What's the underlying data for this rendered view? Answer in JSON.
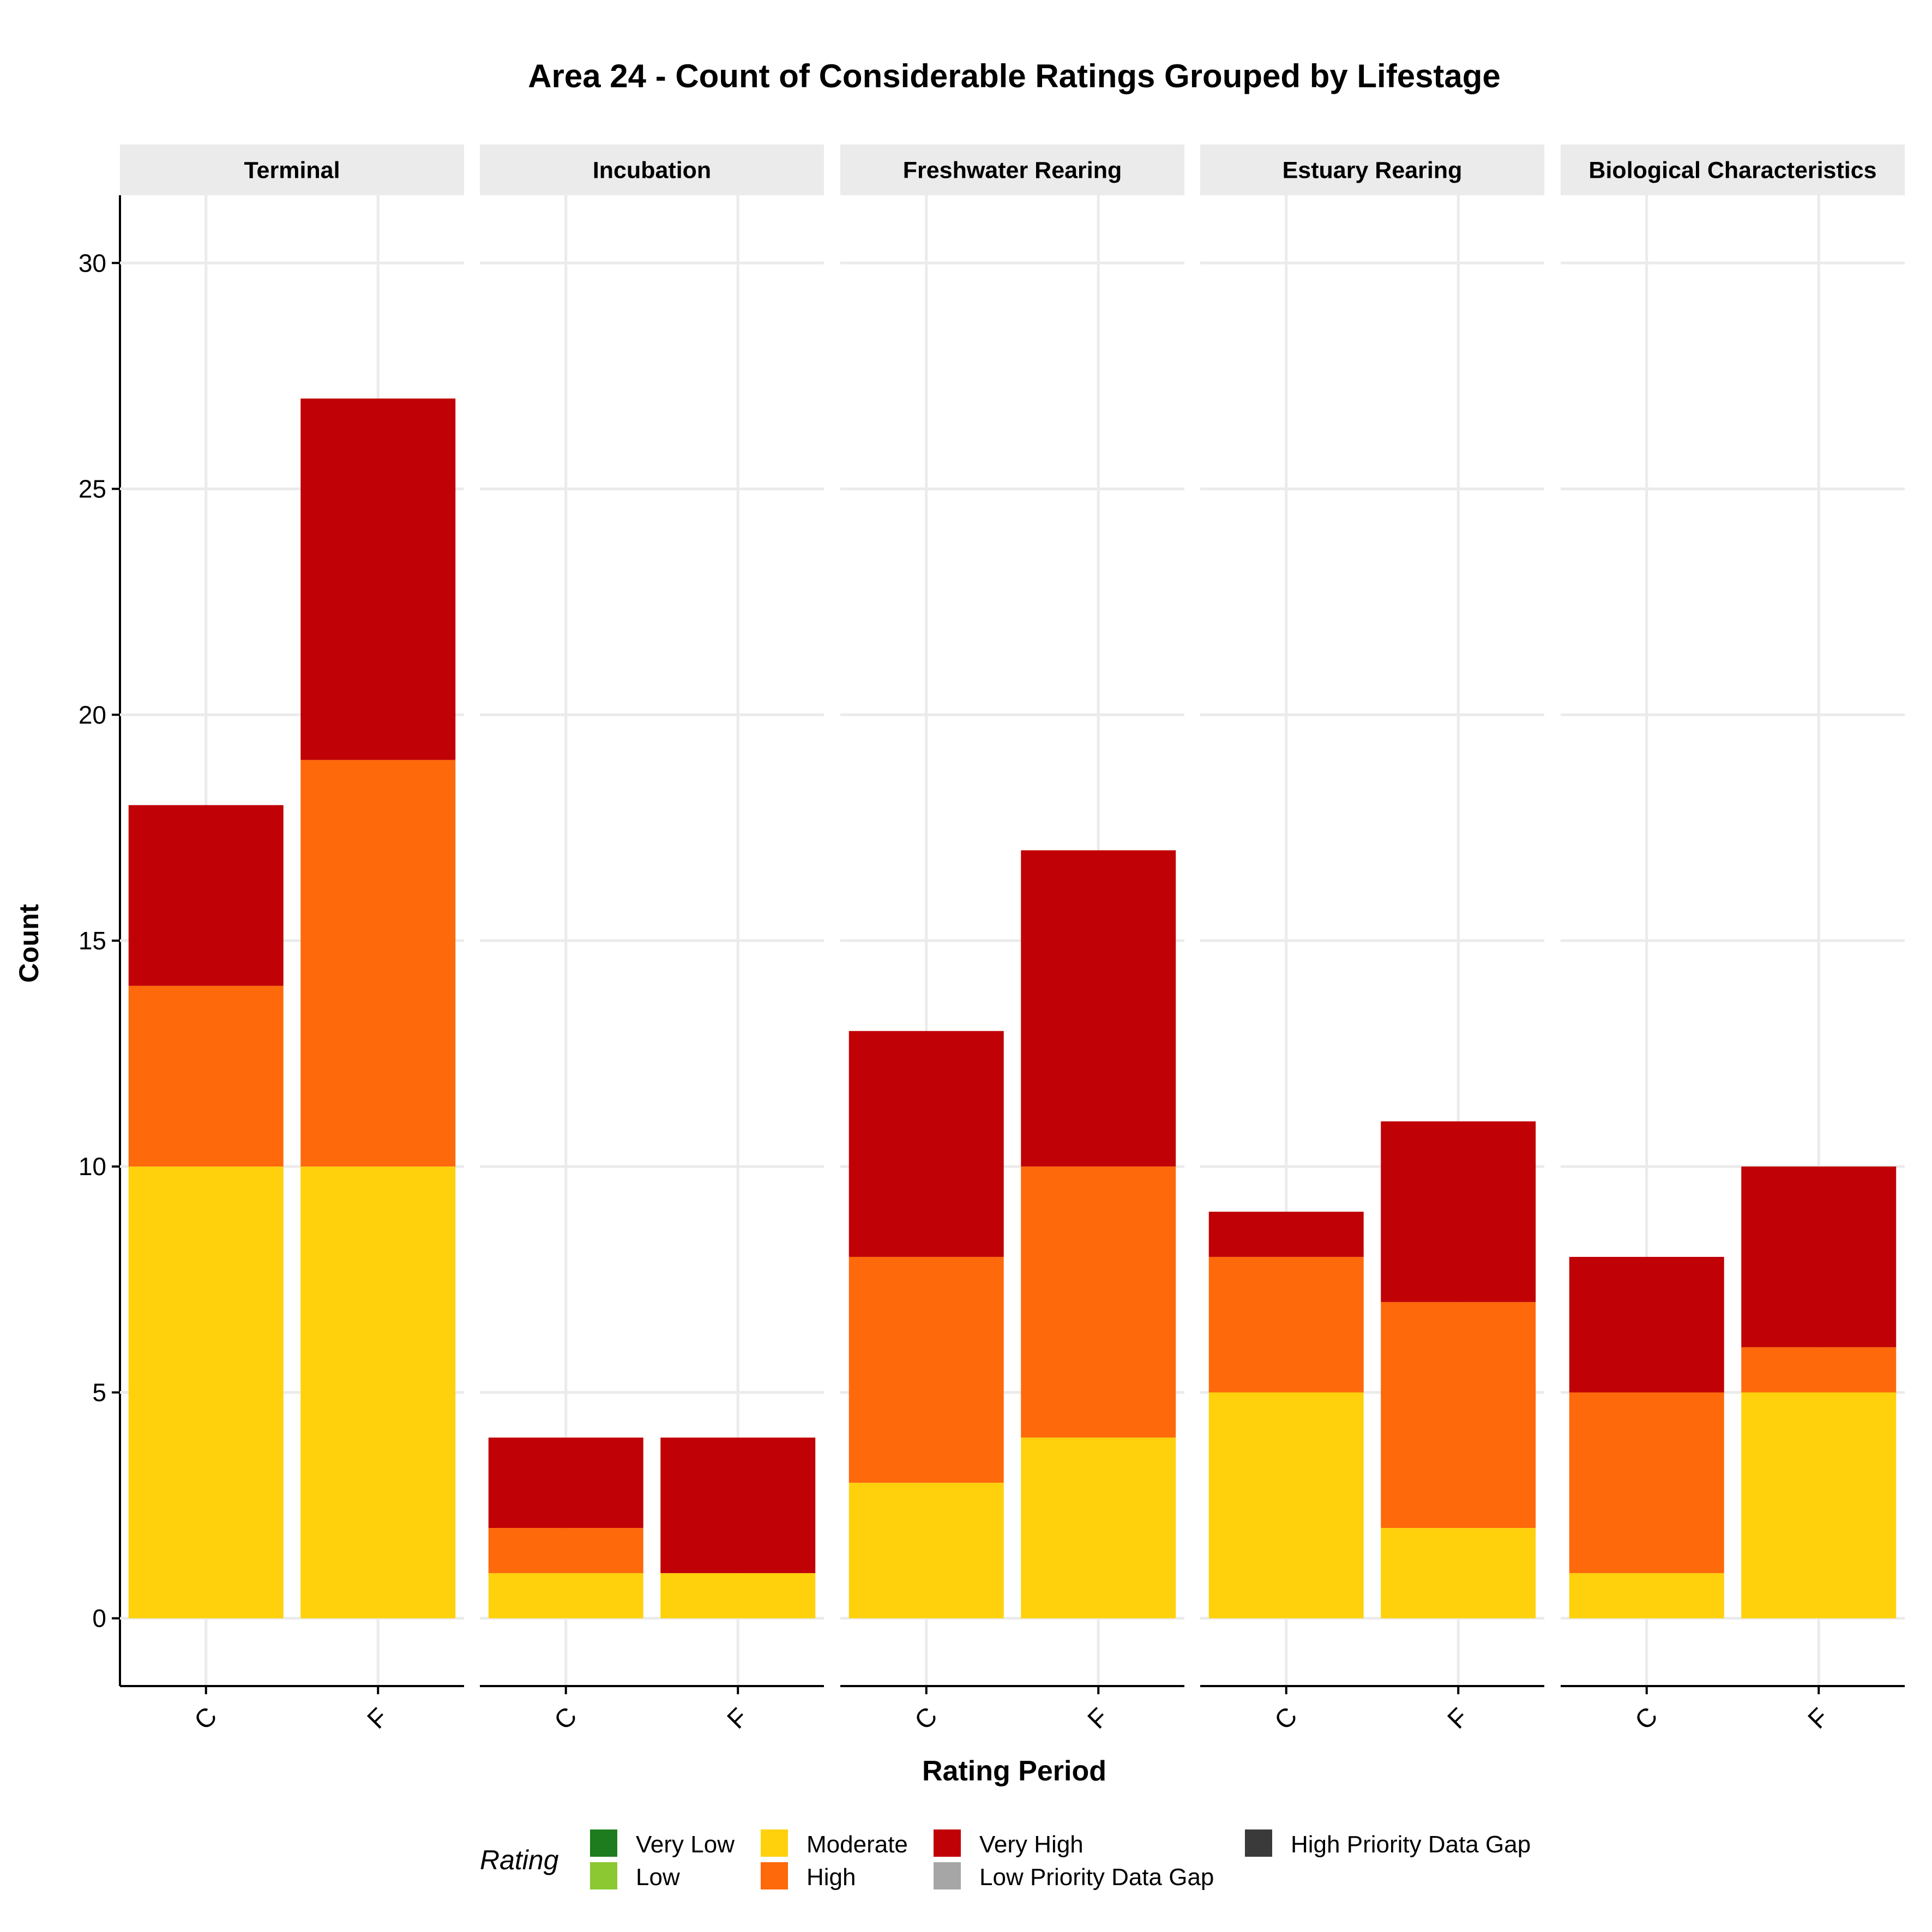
{
  "chart_data": {
    "type": "bar",
    "stacked": true,
    "title": "Area 24 - Count of Considerable Ratings Grouped by Lifestage",
    "xlabel": "Rating Period",
    "ylabel": "Count",
    "ylim": [
      -1.5,
      31.5
    ],
    "yticks": [
      0,
      5,
      10,
      15,
      20,
      25,
      30
    ],
    "grid": true,
    "categories": [
      "C",
      "F"
    ],
    "legend": {
      "title": "Rating",
      "position": "bottom",
      "entries": [
        {
          "label": "Very Low",
          "color": "#1E7B1E"
        },
        {
          "label": "Low",
          "color": "#8BC832"
        },
        {
          "label": "Moderate",
          "color": "#FED10C"
        },
        {
          "label": "High",
          "color": "#FE690B"
        },
        {
          "label": "Very High",
          "color": "#C00106"
        },
        {
          "label": "Low Priority Data Gap",
          "color": "#A6A6A6"
        },
        {
          "label": "High Priority Data Gap",
          "color": "#3A3A3A"
        }
      ]
    },
    "panels": [
      {
        "facet": "Terminal",
        "bars": [
          {
            "x": "C",
            "Moderate": 10,
            "High": 4,
            "Very High": 4
          },
          {
            "x": "F",
            "Moderate": 10,
            "High": 9,
            "Very High": 8
          }
        ]
      },
      {
        "facet": "Incubation",
        "bars": [
          {
            "x": "C",
            "Moderate": 1,
            "High": 1,
            "Very High": 2
          },
          {
            "x": "F",
            "Moderate": 1,
            "High": 0,
            "Very High": 3
          }
        ]
      },
      {
        "facet": "Freshwater Rearing",
        "bars": [
          {
            "x": "C",
            "Moderate": 3,
            "High": 5,
            "Very High": 5
          },
          {
            "x": "F",
            "Moderate": 4,
            "High": 6,
            "Very High": 7
          }
        ]
      },
      {
        "facet": "Estuary Rearing",
        "bars": [
          {
            "x": "C",
            "Moderate": 5,
            "High": 3,
            "Very High": 1
          },
          {
            "x": "F",
            "Moderate": 2,
            "High": 5,
            "Very High": 4
          }
        ]
      },
      {
        "facet": "Biological Characteristics",
        "bars": [
          {
            "x": "C",
            "Moderate": 1,
            "High": 4,
            "Very High": 3
          },
          {
            "x": "F",
            "Moderate": 5,
            "High": 1,
            "Very High": 4
          }
        ]
      }
    ]
  }
}
